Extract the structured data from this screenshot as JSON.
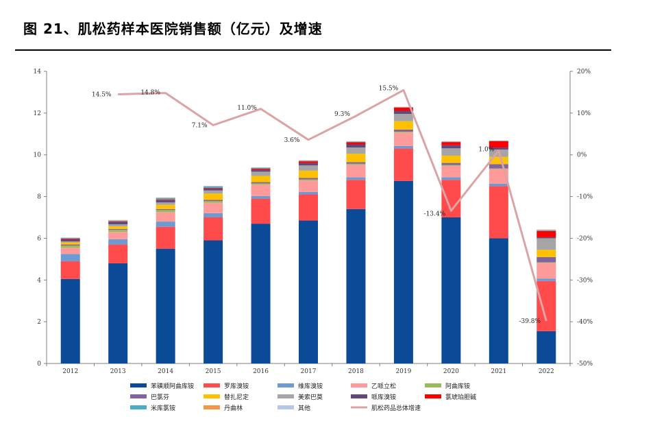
{
  "title": "图 21、肌松药样本医院销售额（亿元）及增速",
  "chart_data": {
    "type": "bar",
    "stacked": true,
    "categories": [
      "2012",
      "2013",
      "2014",
      "2015",
      "2016",
      "2017",
      "2018",
      "2019",
      "2020",
      "2021",
      "2022"
    ],
    "left_axis": {
      "ylim": [
        0,
        14
      ],
      "ticks": [
        "0",
        "2",
        "4",
        "6",
        "8",
        "10",
        "12",
        "14"
      ]
    },
    "right_axis": {
      "ylim": [
        -50,
        20
      ],
      "ticks": [
        "-50%",
        "-40%",
        "-30%",
        "-20%",
        "-10%",
        "0%",
        "10%",
        "20%"
      ]
    },
    "series": [
      {
        "name": "苯磺顺阿曲库铵",
        "color": "#0b4a96",
        "values": [
          4.05,
          4.8,
          5.5,
          5.9,
          6.7,
          6.85,
          7.4,
          8.75,
          7.0,
          6.0,
          1.55
        ]
      },
      {
        "name": "罗库溴铵",
        "color": "#ff4b4b",
        "values": [
          0.85,
          0.9,
          1.05,
          1.1,
          1.2,
          1.25,
          1.4,
          1.55,
          1.8,
          2.5,
          2.4
        ]
      },
      {
        "name": "维库溴铵",
        "color": "#6b9bd2",
        "values": [
          0.35,
          0.25,
          0.25,
          0.2,
          0.12,
          0.12,
          0.12,
          0.12,
          0.12,
          0.12,
          0.12
        ]
      },
      {
        "name": "乙哌立松",
        "color": "#ff9a9a",
        "values": [
          0.3,
          0.35,
          0.45,
          0.5,
          0.55,
          0.55,
          0.6,
          0.65,
          0.55,
          0.7,
          0.75
        ]
      },
      {
        "name": "阿曲库铵",
        "color": "#9bbb59",
        "values": [
          0.1,
          0.1,
          0.1,
          0.08,
          0.06,
          0.05,
          0.05,
          0.04,
          0.04,
          0.03,
          0.03
        ]
      },
      {
        "name": "巴氯芬",
        "color": "#8064a2",
        "values": [
          0.05,
          0.05,
          0.05,
          0.06,
          0.06,
          0.07,
          0.08,
          0.1,
          0.1,
          0.2,
          0.25
        ]
      },
      {
        "name": "替扎尼定",
        "color": "#ffc000",
        "values": [
          0.1,
          0.12,
          0.2,
          0.3,
          0.3,
          0.35,
          0.4,
          0.4,
          0.35,
          0.35,
          0.35
        ]
      },
      {
        "name": "美索巴莫",
        "color": "#a5a5a5",
        "values": [
          0.05,
          0.1,
          0.12,
          0.15,
          0.2,
          0.25,
          0.3,
          0.35,
          0.35,
          0.35,
          0.55
        ]
      },
      {
        "name": "哌库溴铵",
        "color": "#604a7b",
        "values": [
          0.1,
          0.1,
          0.1,
          0.1,
          0.1,
          0.12,
          0.15,
          0.15,
          0.15,
          0.1,
          0.05
        ]
      },
      {
        "name": "氯琥珀胆碱",
        "color": "#ff0000",
        "values": [
          0.03,
          0.03,
          0.03,
          0.03,
          0.05,
          0.08,
          0.1,
          0.15,
          0.15,
          0.3,
          0.3
        ]
      },
      {
        "name": "米库氯铵",
        "color": "#4bacc6",
        "values": [
          0.03,
          0.05,
          0.08,
          0.07,
          0.04,
          0.03,
          0.03,
          0.02,
          0.02,
          0.02,
          0.03
        ]
      },
      {
        "name": "丹曲林",
        "color": "#f79646",
        "values": [
          0.01,
          0.01,
          0.01,
          0.01,
          0.01,
          0.01,
          0.01,
          0.01,
          0.01,
          0.01,
          0.03
        ]
      },
      {
        "name": "其他",
        "color": "#b4c7e7",
        "values": [
          0.02,
          0.02,
          0.02,
          0.01,
          0.01,
          0.01,
          0.01,
          0.01,
          0.01,
          0.01,
          0.01
        ]
      }
    ],
    "growth": {
      "name": "肌松药品总体增速",
      "color": "#dba3a3",
      "values": [
        null,
        14.5,
        14.8,
        7.1,
        11.0,
        3.6,
        9.3,
        15.5,
        -13.4,
        1.0,
        -39.8
      ],
      "labels": [
        "",
        "14.5%",
        "14.8%",
        "7.1%",
        "11.0%",
        "3.6%",
        "9.3%",
        "15.5%",
        "-13.4%",
        "1.0%",
        "-39.8%"
      ]
    }
  }
}
